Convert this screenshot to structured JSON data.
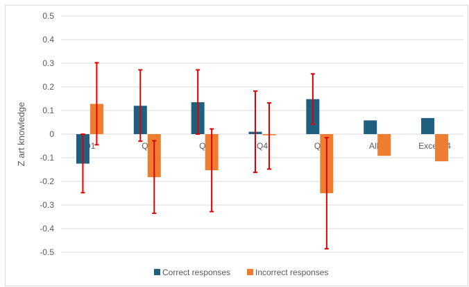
{
  "chart_data": {
    "type": "bar",
    "title": "",
    "xlabel": "",
    "ylabel": "Z art knowledge",
    "ylim": [
      -0.5,
      0.5
    ],
    "yticks": [
      "0.5",
      "0.4",
      "0.3",
      "0.2",
      "0.1",
      "0",
      "-0.1",
      "-0.2",
      "-0.3",
      "-0.4",
      "-0.5"
    ],
    "grid": true,
    "legend_position": "bottom",
    "categories": [
      "Q1",
      "Q2",
      "Q3",
      "Q4",
      "Q5",
      "All 5",
      "Except 4"
    ],
    "series": [
      {
        "name": "Correct responses",
        "color": "#1f5f7f",
        "values": [
          -0.125,
          0.12,
          0.135,
          0.01,
          0.148,
          0.058,
          0.068
        ],
        "error_low": [
          -0.248,
          -0.03,
          0.0,
          -0.162,
          0.042,
          null,
          null
        ],
        "error_high": [
          0.0,
          0.272,
          0.272,
          0.182,
          0.255,
          null,
          null
        ]
      },
      {
        "name": "Incorrect responses",
        "color": "#ed7d31",
        "values": [
          0.128,
          -0.182,
          -0.153,
          -0.005,
          -0.25,
          -0.092,
          -0.115
        ],
        "error_low": [
          -0.045,
          -0.335,
          -0.328,
          -0.148,
          -0.485,
          null,
          null
        ],
        "error_high": [
          0.302,
          -0.028,
          0.022,
          0.132,
          -0.015,
          null,
          null
        ]
      }
    ],
    "error_bar_color": "#e00000"
  }
}
